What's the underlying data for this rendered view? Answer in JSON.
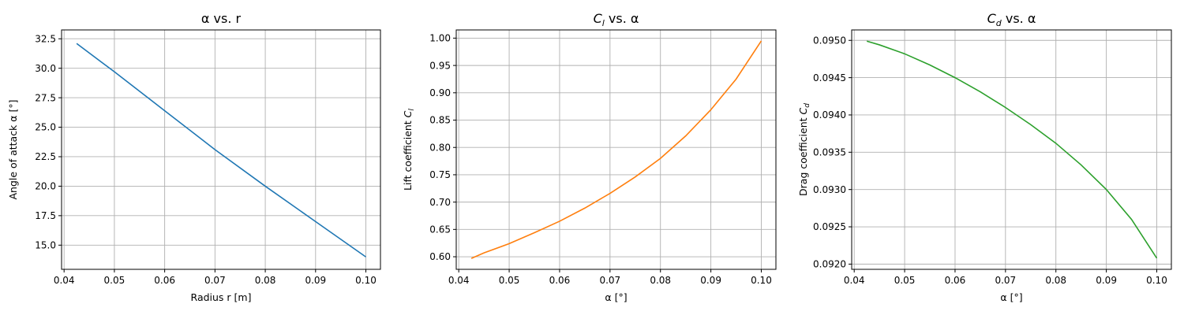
{
  "chart_data": [
    {
      "type": "line",
      "title": "α vs. r",
      "xlabel": "Radius r [m]",
      "ylabel": "Angle of attack α [°]",
      "xlim": [
        0.0395,
        0.1029
      ],
      "ylim": [
        12.95,
        33.25
      ],
      "xticks": [
        0.04,
        0.05,
        0.06,
        0.07,
        0.08,
        0.09,
        0.1
      ],
      "xtick_labels": [
        "0.04",
        "0.05",
        "0.06",
        "0.07",
        "0.08",
        "0.09",
        "0.10"
      ],
      "yticks": [
        15.0,
        17.5,
        20.0,
        22.5,
        25.0,
        27.5,
        30.0,
        32.5
      ],
      "ytick_labels": [
        "15.0",
        "17.5",
        "20.0",
        "22.5",
        "25.0",
        "27.5",
        "30.0",
        "32.5"
      ],
      "grid": true,
      "color": "#1f77b4",
      "series": [
        {
          "x": [
            0.0425,
            0.05,
            0.06,
            0.07,
            0.08,
            0.09,
            0.1
          ],
          "y": [
            32.1,
            29.7,
            26.4,
            23.1,
            20.0,
            17.0,
            14.0
          ]
        }
      ]
    },
    {
      "type": "line",
      "title": "Cl vs. α",
      "title_symbol": "C",
      "title_sub": "l",
      "title_rest": " vs. α",
      "xlabel": "α [°]",
      "ylabel": "Lift coefficient Cl",
      "ylabel_text": "Lift coefficient ",
      "ylabel_symbol": "C",
      "ylabel_sub": "l",
      "xlim": [
        0.0395,
        0.1029
      ],
      "ylim": [
        0.577,
        1.015
      ],
      "xticks": [
        0.04,
        0.05,
        0.06,
        0.07,
        0.08,
        0.09,
        0.1
      ],
      "xtick_labels": [
        "0.04",
        "0.05",
        "0.06",
        "0.07",
        "0.08",
        "0.09",
        "0.10"
      ],
      "yticks": [
        0.6,
        0.65,
        0.7,
        0.75,
        0.8,
        0.85,
        0.9,
        0.95,
        1.0
      ],
      "ytick_labels": [
        "0.60",
        "0.65",
        "0.70",
        "0.75",
        "0.80",
        "0.85",
        "0.90",
        "0.95",
        "1.00"
      ],
      "grid": true,
      "color": "#ff7f0e",
      "series": [
        {
          "x": [
            0.0425,
            0.045,
            0.05,
            0.055,
            0.06,
            0.065,
            0.07,
            0.075,
            0.08,
            0.085,
            0.09,
            0.095,
            0.1
          ],
          "y": [
            0.597,
            0.607,
            0.624,
            0.644,
            0.665,
            0.689,
            0.716,
            0.746,
            0.78,
            0.821,
            0.869,
            0.925,
            0.995
          ]
        }
      ]
    },
    {
      "type": "line",
      "title": "Cd vs. α",
      "title_symbol": "C",
      "title_sub": "d",
      "title_rest": " vs. α",
      "xlabel": "α [°]",
      "ylabel": "Drag coefficient Cd",
      "ylabel_text": "Drag coefficient ",
      "ylabel_symbol": "C",
      "ylabel_sub": "d",
      "xlim": [
        0.0395,
        0.1029
      ],
      "ylim": [
        0.09193,
        0.09514
      ],
      "xticks": [
        0.04,
        0.05,
        0.06,
        0.07,
        0.08,
        0.09,
        0.1
      ],
      "xtick_labels": [
        "0.04",
        "0.05",
        "0.06",
        "0.07",
        "0.08",
        "0.09",
        "0.10"
      ],
      "yticks": [
        0.092,
        0.0925,
        0.093,
        0.0935,
        0.094,
        0.0945,
        0.095
      ],
      "ytick_labels": [
        "0.0920",
        "0.0925",
        "0.0930",
        "0.0935",
        "0.0940",
        "0.0945",
        "0.0950"
      ],
      "grid": true,
      "color": "#2ca02c",
      "series": [
        {
          "x": [
            0.0425,
            0.045,
            0.05,
            0.055,
            0.06,
            0.065,
            0.07,
            0.075,
            0.08,
            0.085,
            0.09,
            0.095,
            0.1
          ],
          "y": [
            0.09499,
            0.09494,
            0.09482,
            0.09467,
            0.0945,
            0.09431,
            0.0941,
            0.09387,
            0.09362,
            0.09333,
            0.093,
            0.0926,
            0.09208
          ]
        }
      ]
    }
  ]
}
